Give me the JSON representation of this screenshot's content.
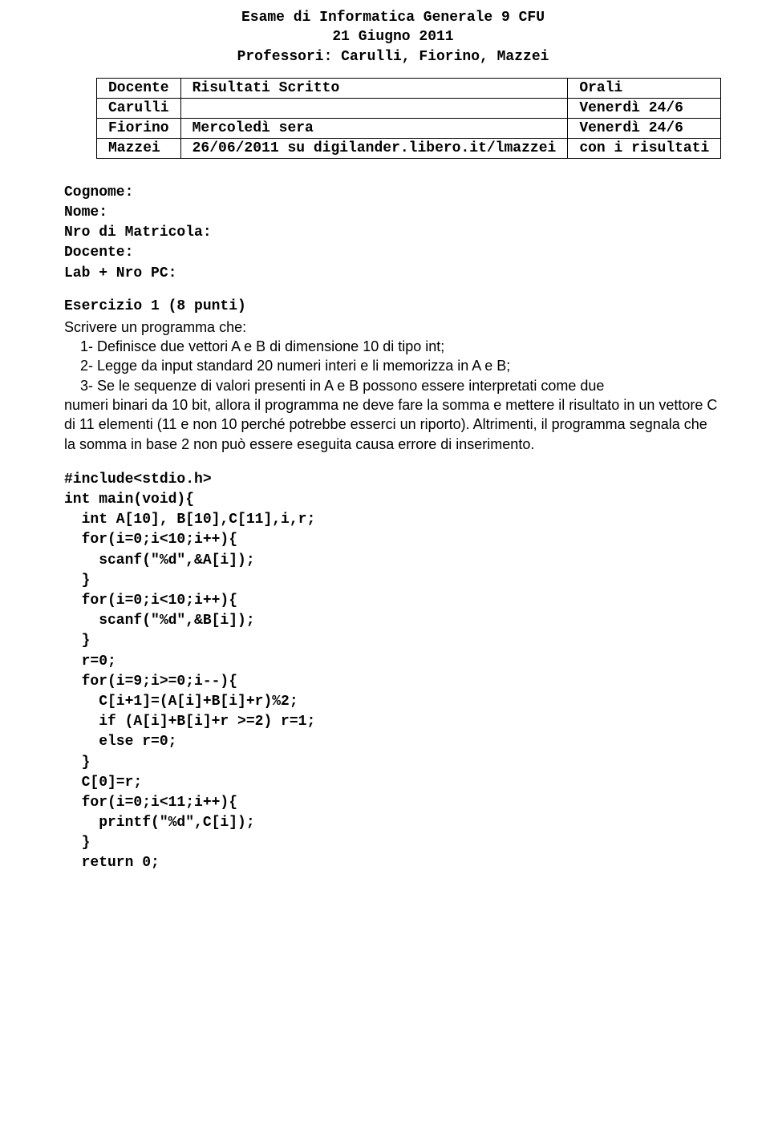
{
  "header": {
    "line1": "Esame di Informatica Generale 9 CFU",
    "line2": "21 Giugno 2011",
    "line3": "Professori: Carulli, Fiorino, Mazzei"
  },
  "table": {
    "columns": [
      "Docente",
      "Risultati Scritto",
      "Orali"
    ],
    "rows": [
      [
        "Carulli",
        "",
        "Venerdì 24/6"
      ],
      [
        "Fiorino",
        "Mercoledì sera",
        "Venerdì 24/6"
      ],
      [
        "Mazzei",
        "26/06/2011 su digilander.libero.it/lmazzei",
        "con i risultati"
      ]
    ]
  },
  "info": {
    "l1": "Cognome:",
    "l2": "Nome:",
    "l3": "Nro di Matricola:",
    "l4": "Docente:",
    "l5": "Lab + Nro PC:"
  },
  "exercise": {
    "title": "Esercizio 1 (8 punti)",
    "intro": "Scrivere un programma che:",
    "item1": "1- Definisce due vettori A e B di dimensione 10 di tipo int;",
    "item2": "2- Legge da input standard 20 numeri interi e li memorizza in A e B;",
    "item3": "3- Se le sequenze di valori presenti in A e B possono essere interpretati come due",
    "cont1": "numeri binari da 10 bit, allora il programma ne deve fare la somma e mettere il risultato in un vettore C di 11 elementi (11 e non 10 perché potrebbe esserci un riporto).  Altrimenti, il programma segnala che la somma in base 2 non può essere eseguita causa errore di inserimento."
  },
  "code": {
    "l1": "#include<stdio.h>",
    "l2": "int main(void){",
    "l3": "  int A[10], B[10],C[11],i,r;",
    "l4": "  for(i=0;i<10;i++){",
    "l5": "    scanf(\"%d\",&A[i]);",
    "l6": "  }",
    "l7": "  for(i=0;i<10;i++){",
    "l8": "    scanf(\"%d\",&B[i]);",
    "l9": "  }",
    "l10": "  r=0;",
    "l11": "  for(i=9;i>=0;i--){",
    "l12": "    C[i+1]=(A[i]+B[i]+r)%2;",
    "l13": "    if (A[i]+B[i]+r >=2) r=1;",
    "l14": "    else r=0;",
    "l15": "  }",
    "l16": "  C[0]=r;",
    "l17": "  for(i=0;i<11;i++){",
    "l18": "    printf(\"%d\",C[i]);",
    "l19": "  }",
    "l20": "  return 0;"
  }
}
